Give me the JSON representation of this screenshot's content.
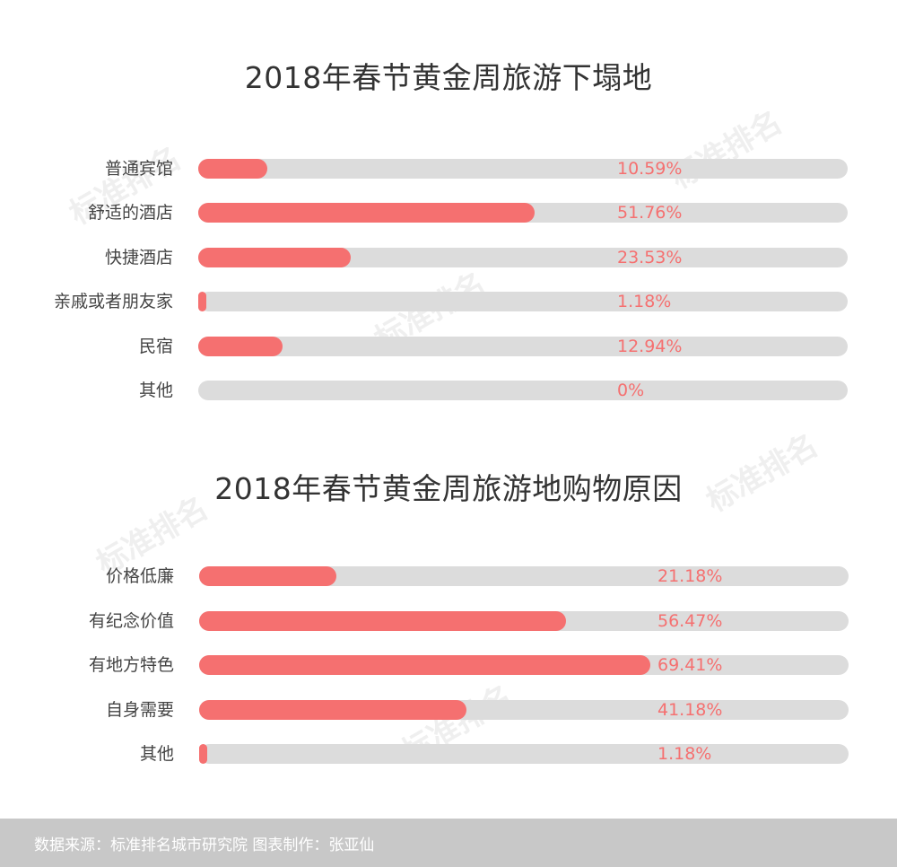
{
  "colors": {
    "fill": "#f57070",
    "track": "#dcdcdc",
    "value_text": "#f57070"
  },
  "chart_data": [
    {
      "type": "bar",
      "title": "2018年春节黄金周旅游下塌地",
      "categories": [
        "普通宾馆",
        "舒适的酒店",
        "快捷酒店",
        "亲戚或者朋友家",
        "民宿",
        "其他"
      ],
      "values": [
        10.59,
        51.76,
        23.53,
        1.18,
        12.94,
        0
      ],
      "value_labels": [
        "10.59%",
        "51.76%",
        "23.53%",
        "1.18%",
        "12.94%",
        "0%"
      ],
      "xlim": [
        0,
        100
      ]
    },
    {
      "type": "bar",
      "title": "2018年春节黄金周旅游地购物原因",
      "categories": [
        "价格低廉",
        "有纪念价值",
        "有地方特色",
        "自身需要",
        "其他"
      ],
      "values": [
        21.18,
        56.47,
        69.41,
        41.18,
        1.18
      ],
      "value_labels": [
        "21.18%",
        "56.47%",
        "69.41%",
        "41.18%",
        "1.18%"
      ],
      "xlim": [
        0,
        100
      ]
    }
  ],
  "watermark": {
    "text": "标准排名"
  },
  "footer": {
    "text": "数据来源：标准排名城市研究院  图表制作：张亚仙"
  }
}
